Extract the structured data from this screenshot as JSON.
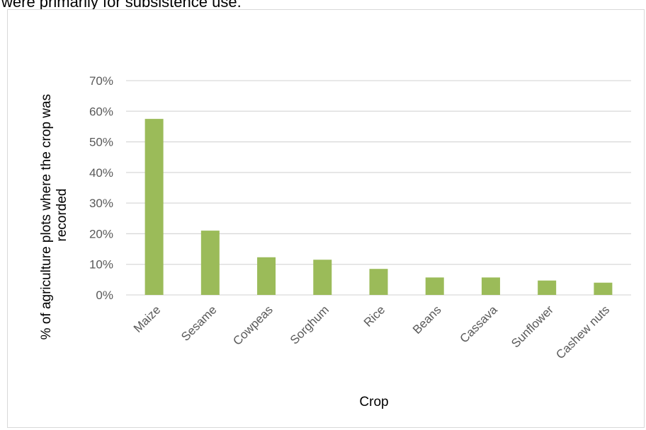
{
  "caption_fragment": "were primarily for subsistence use.",
  "chart_data": {
    "type": "bar",
    "categories": [
      "Maize",
      "Sesame",
      "Cowpeas",
      "Sorghum",
      "Rice",
      "Beans",
      "Cassava",
      "Sunflower",
      "Cashew nuts"
    ],
    "values": [
      57.5,
      21,
      12.3,
      11.5,
      8.5,
      5.7,
      5.7,
      4.7,
      4.0
    ],
    "value_unit": "%",
    "title": "",
    "xlabel": "Crop",
    "ylabel": "% of agriculture plots where the crop was recorded",
    "ylabel_lines": [
      "% of agriculture plots where the crop was",
      "recorded"
    ],
    "ylim": [
      0,
      70
    ],
    "yticks": [
      0,
      10,
      20,
      30,
      40,
      50,
      60,
      70
    ],
    "ytick_labels": [
      "0%",
      "10%",
      "20%",
      "30%",
      "40%",
      "50%",
      "60%",
      "70%"
    ],
    "grid": true,
    "legend": "none",
    "bar_color": "#9bbb59",
    "grid_color": "#d9d9d9"
  }
}
